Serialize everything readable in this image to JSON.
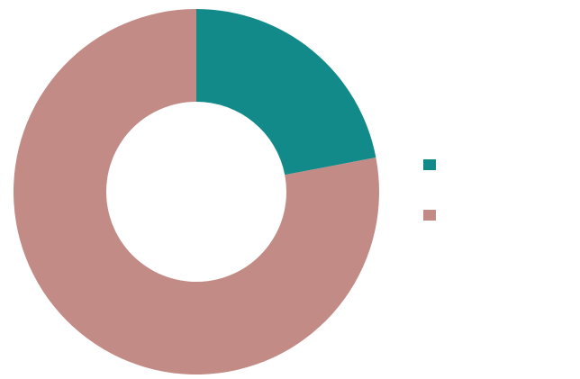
{
  "chart_data": {
    "type": "pie",
    "variant": "donut",
    "title": "",
    "slices": [
      {
        "label": "",
        "value": 22,
        "value_label": "",
        "color": "#138a8a"
      },
      {
        "label": "",
        "value": 78,
        "value_label": "",
        "color": "#c28b85"
      }
    ],
    "legend": {
      "position": "right"
    }
  }
}
